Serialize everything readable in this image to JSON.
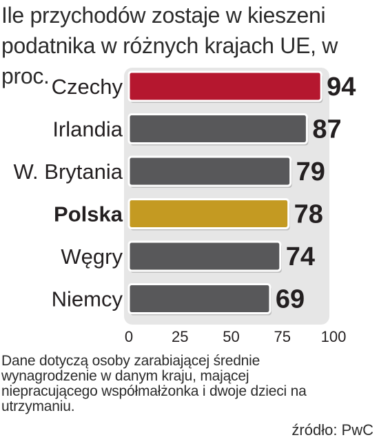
{
  "title": "Ile przychodów zostaje w kieszeni podatnika w różnych krajach UE, w proc.",
  "chart_data": {
    "type": "bar",
    "orientation": "horizontal",
    "title": "Ile przychodów zostaje w kieszeni podatnika w różnych krajach UE, w proc.",
    "categories": [
      "Czechy",
      "Irlandia",
      "W. Brytania",
      "Polska",
      "Węgry",
      "Niemcy"
    ],
    "values": [
      94,
      87,
      79,
      78,
      74,
      69
    ],
    "data_labels": [
      "94",
      "87",
      "79",
      "78",
      "74",
      "69"
    ],
    "xlim": [
      0,
      100
    ],
    "x_ticks": [
      "0",
      "25",
      "50",
      "75",
      "100"
    ],
    "xlabel": "",
    "ylabel": "",
    "grid": false,
    "legend": "none",
    "bar_colors": [
      "#b5172f",
      "#58585a",
      "#58585a",
      "#c49a22",
      "#58585a",
      "#58585a"
    ],
    "bold_category": "Polska",
    "panel_color": "#e6e6e6"
  },
  "note": "Dane dotyczą osoby zarabiającej średnie wynagrodzenie w danym kraju, mającej niepracującego współmałżonka i dwoje dzieci na utrzymaniu.",
  "source": "źródło: PwC"
}
